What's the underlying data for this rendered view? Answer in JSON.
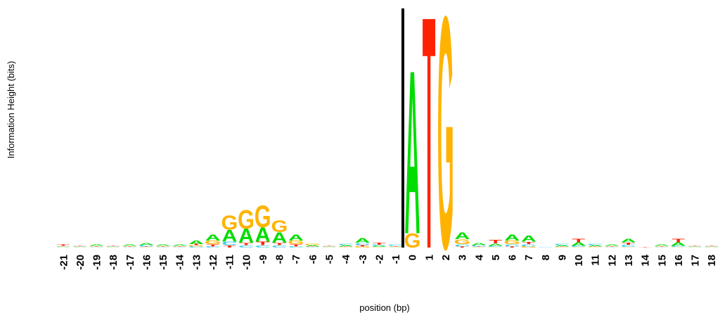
{
  "chart_data": {
    "type": "sequence-logo",
    "ylabel": "Information Height (bits)",
    "xlabel": "position (bp)",
    "ylim": [
      0,
      2
    ],
    "categories": [
      "-21",
      "-20",
      "-19",
      "-18",
      "-17",
      "-16",
      "-15",
      "-14",
      "-13",
      "-12",
      "-11",
      "-10",
      "-9",
      "-8",
      "-7",
      "-6",
      "-5",
      "-4",
      "-3",
      "-2",
      "-1",
      "0",
      "1",
      "2",
      "3",
      "4",
      "5",
      "6",
      "7",
      "8",
      "9",
      "10",
      "11",
      "12",
      "13",
      "14",
      "15",
      "16",
      "17",
      "18"
    ],
    "series": [
      {
        "name": "A",
        "color": "#00dd00",
        "values": [
          0.005,
          0.005,
          0.01,
          0.005,
          0.01,
          0.02,
          0.01,
          0.01,
          0.03,
          0.05,
          0.1,
          0.12,
          0.12,
          0.09,
          0.05,
          0.01,
          0.005,
          0.01,
          0.04,
          0.01,
          0.005,
          1.41,
          0,
          0,
          0.06,
          0.02,
          0.02,
          0.05,
          0.05,
          0,
          0.01,
          0.03,
          0.01,
          0.01,
          0.03,
          0,
          0.01,
          0.03,
          0.005,
          0.005
        ]
      },
      {
        "name": "C",
        "color": "#33ccee",
        "values": [
          0.005,
          0.005,
          0.005,
          0.005,
          0.005,
          0.01,
          0.005,
          0.005,
          0.01,
          0.01,
          0.03,
          0.02,
          0.02,
          0.02,
          0.01,
          0.005,
          0.005,
          0.01,
          0.02,
          0.01,
          0.01,
          0,
          0,
          0,
          0.02,
          0.01,
          0.01,
          0.02,
          0.02,
          0.005,
          0.01,
          0.01,
          0.01,
          0.005,
          0.02,
          0,
          0.005,
          0.01,
          0.005,
          0.005
        ]
      },
      {
        "name": "G",
        "color": "#ffb300",
        "values": [
          0.005,
          0.005,
          0.005,
          0.005,
          0.005,
          0.005,
          0.005,
          0.005,
          0.01,
          0.03,
          0.12,
          0.16,
          0.19,
          0.1,
          0.03,
          0.01,
          0.005,
          0.005,
          0.01,
          0.005,
          0.005,
          0.12,
          0,
          2.0,
          0.04,
          0.005,
          0.005,
          0.03,
          0.01,
          0,
          0.005,
          0.005,
          0.005,
          0.005,
          0.005,
          0,
          0.005,
          0.005,
          0.005,
          0.005
        ]
      },
      {
        "name": "T",
        "color": "#ff2200",
        "values": [
          0.01,
          0.005,
          0.005,
          0.005,
          0.005,
          0.005,
          0.005,
          0.005,
          0.01,
          0.02,
          0.02,
          0.02,
          0.03,
          0.02,
          0.02,
          0.005,
          0.005,
          0.005,
          0.01,
          0.02,
          0.005,
          0,
          2.0,
          0,
          0.01,
          0.005,
          0.03,
          0.01,
          0.02,
          0,
          0.005,
          0.03,
          0.005,
          0.005,
          0.02,
          0.005,
          0.005,
          0.03,
          0.005,
          0.005
        ]
      }
    ]
  }
}
